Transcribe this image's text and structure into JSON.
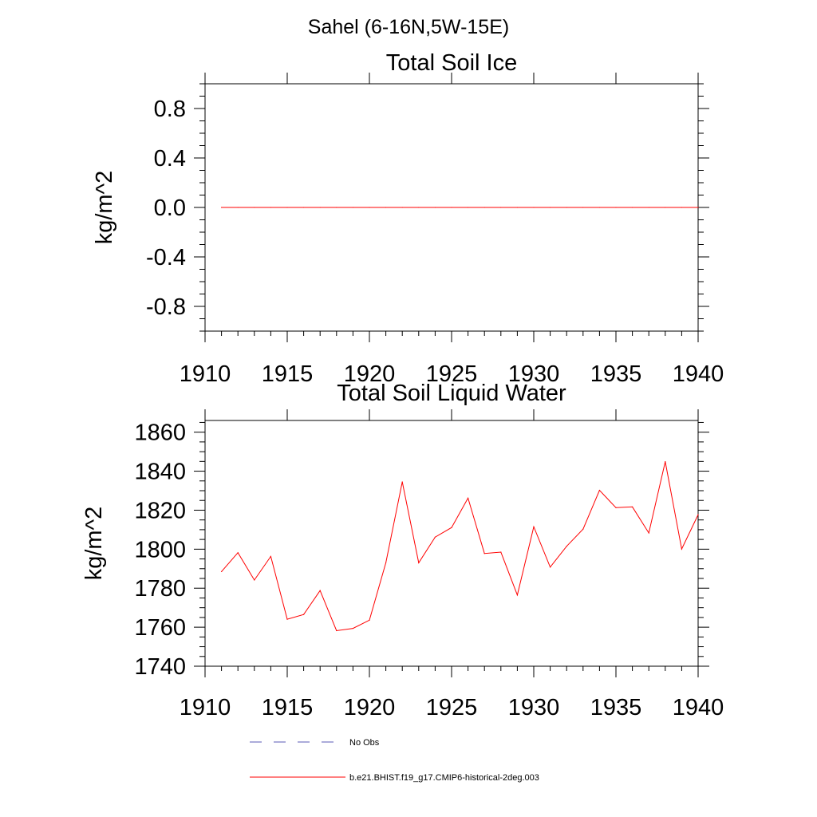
{
  "figure": {
    "suptitle": "Sahel (6-16N,5W-15E)"
  },
  "legend": [
    {
      "label": "No Obs",
      "color": "#5a5ab4",
      "style": "dashed"
    },
    {
      "label": "b.e21.BHIST.f19_g17.CMIP6-historical-2deg.003",
      "color": "#ff0000",
      "style": "solid"
    }
  ],
  "chart_data": [
    {
      "type": "line",
      "title": "Total Soil Ice",
      "xlabel": "",
      "ylabel": "kg/m^2",
      "xlim": [
        1910,
        1940
      ],
      "ylim": [
        -1,
        1
      ],
      "xticks": [
        1910,
        1915,
        1920,
        1925,
        1930,
        1935,
        1940
      ],
      "xtick_labels": [
        "1910",
        "1915",
        "1920",
        "1925",
        "1930",
        "1935",
        "1940"
      ],
      "yticks": [
        0.8,
        0.4,
        0.0,
        -0.4,
        -0.8
      ],
      "ytick_labels": [
        "0.8",
        "0.4",
        "0.0",
        "-0.4",
        "-0.8"
      ],
      "grid": false,
      "series": [
        {
          "name": "b.e21.BHIST.f19_g17.CMIP6-historical-2deg.003",
          "color": "#ff0000",
          "x": [
            1911,
            1912,
            1913,
            1914,
            1915,
            1916,
            1917,
            1918,
            1919,
            1920,
            1921,
            1922,
            1923,
            1924,
            1925,
            1926,
            1927,
            1928,
            1929,
            1930,
            1931,
            1932,
            1933,
            1934,
            1935,
            1936,
            1937,
            1938,
            1939,
            1940
          ],
          "y": [
            0,
            0,
            0,
            0,
            0,
            0,
            0,
            0,
            0,
            0,
            0,
            0,
            0,
            0,
            0,
            0,
            0,
            0,
            0,
            0,
            0,
            0,
            0,
            0,
            0,
            0,
            0,
            0,
            0,
            0
          ]
        }
      ]
    },
    {
      "type": "line",
      "title": "Total Soil Liquid Water",
      "xlabel": "",
      "ylabel": "kg/m^2",
      "xlim": [
        1910,
        1940
      ],
      "ylim": [
        1740,
        1866
      ],
      "xticks": [
        1910,
        1915,
        1920,
        1925,
        1930,
        1935,
        1940
      ],
      "xtick_labels": [
        "1910",
        "1915",
        "1920",
        "1925",
        "1930",
        "1935",
        "1940"
      ],
      "yticks": [
        1860,
        1840,
        1820,
        1800,
        1780,
        1760,
        1740
      ],
      "ytick_labels": [
        "1860",
        "1840",
        "1820",
        "1800",
        "1780",
        "1760",
        "1740"
      ],
      "grid": false,
      "series": [
        {
          "name": "b.e21.BHIST.f19_g17.CMIP6-historical-2deg.003",
          "color": "#ff0000",
          "x": [
            1911,
            1912,
            1913,
            1914,
            1915,
            1916,
            1917,
            1918,
            1919,
            1920,
            1921,
            1922,
            1923,
            1924,
            1925,
            1926,
            1927,
            1928,
            1929,
            1930,
            1931,
            1932,
            1933,
            1934,
            1935,
            1936,
            1937,
            1938,
            1939,
            1940
          ],
          "y": [
            1788.5,
            1798.2,
            1784.2,
            1796.3,
            1764.1,
            1766.5,
            1778.8,
            1758.2,
            1759.4,
            1763.6,
            1793.0,
            1834.5,
            1793.0,
            1806.2,
            1811.1,
            1826.2,
            1797.8,
            1798.5,
            1776.5,
            1811.5,
            1790.8,
            1801.5,
            1810.3,
            1830.2,
            1821.3,
            1821.7,
            1808.3,
            1844.9,
            1800.1,
            1817.7
          ]
        }
      ]
    }
  ]
}
